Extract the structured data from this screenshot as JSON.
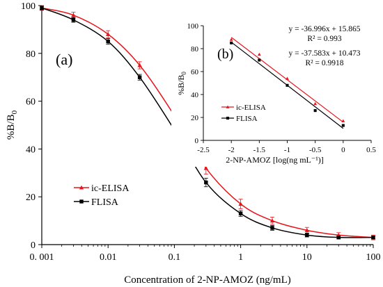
{
  "chart_data": [
    {
      "panel_label": "(a)",
      "type": "line",
      "xlabel": "Concentration of 2-NP-AMOZ (ng/mL)",
      "ylabel_main": "%B/B",
      "ylabel_sub": "0",
      "x_scale": "log",
      "xlim": [
        0.001,
        100
      ],
      "ylim": [
        0,
        100
      ],
      "x_ticks": [
        0.001,
        0.01,
        0.1,
        1,
        10,
        100
      ],
      "x_tick_labels": [
        "0. 001",
        "0.01",
        "0.1",
        "1",
        "10",
        "100"
      ],
      "y_ticks": [
        0,
        20,
        40,
        60,
        80,
        100
      ],
      "y_tick_labels": [
        "0",
        "20",
        "40",
        "60",
        "80",
        "100"
      ],
      "grid": false,
      "legend_position": "bottom-left",
      "x": [
        0.001,
        0.003,
        0.01,
        0.03,
        0.1,
        0.3,
        1,
        3,
        10,
        30,
        100
      ],
      "series": [
        {
          "name": "ic-ELISA",
          "color": "#e8141c",
          "marker": "triangle",
          "values": [
            99,
            96,
            88,
            75,
            54,
            32,
            17,
            10,
            6,
            4,
            3
          ],
          "errors": [
            1.0,
            1.2,
            1.5,
            1.5,
            2.0,
            2.5,
            2.0,
            1.5,
            1.2,
            1.0,
            1.0
          ]
        },
        {
          "name": "FLISA",
          "color": "#000000",
          "marker": "square",
          "values": [
            99,
            94,
            85,
            70,
            48,
            26,
            13,
            7,
            4,
            3,
            3
          ],
          "errors": [
            0.8,
            1.0,
            1.2,
            1.2,
            1.5,
            1.8,
            1.2,
            1.0,
            0.8,
            0.6,
            0.6
          ]
        }
      ]
    },
    {
      "panel_label": "(b)",
      "type": "scatter",
      "xlabel": "2-NP-AMOZ [log(ng mL⁻¹)]",
      "ylabel_main": "%B/B",
      "ylabel_sub": "0",
      "xlim": [
        -2.5,
        0.5
      ],
      "ylim": [
        0,
        100
      ],
      "x_ticks": [
        -2.5,
        -2,
        -1.5,
        -1,
        -0.5,
        0,
        0.5
      ],
      "x_tick_labels": [
        "-2.5",
        "-2",
        "-1.5",
        "-1",
        "-0.5",
        "0",
        "0.5"
      ],
      "y_ticks": [
        0,
        20,
        40,
        60,
        80,
        100
      ],
      "y_tick_labels": [
        "0",
        "20",
        "40",
        "60",
        "80",
        "100"
      ],
      "grid": false,
      "legend_position": "bottom-left",
      "x": [
        -2,
        -1.5,
        -1,
        -0.5,
        0
      ],
      "series": [
        {
          "name": "ic-ELISA",
          "color": "#e8141c",
          "marker": "triangle",
          "values": [
            88,
            75,
            54,
            32,
            17
          ],
          "fit": {
            "slope": -36.996,
            "intercept": 15.865
          },
          "equation": "y = -36.996x + 15.865",
          "r2_label": "R² = 0.993"
        },
        {
          "name": "FLISA",
          "color": "#000000",
          "marker": "square",
          "values": [
            85,
            70,
            48,
            26,
            13
          ],
          "fit": {
            "slope": -37.583,
            "intercept": 10.473
          },
          "equation": "y = -37.583x + 10.473",
          "r2_label": "R² = 0.9918"
        }
      ]
    }
  ]
}
